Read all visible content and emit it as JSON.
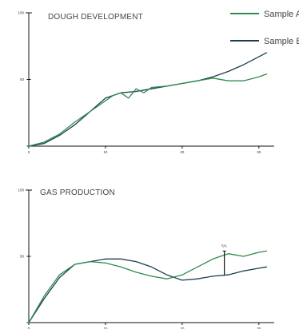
{
  "colors": {
    "sample_a": "#2e8b4e",
    "sample_b": "#1c3f4f",
    "axis": "#111111"
  },
  "legend": [
    {
      "label": "Sample A",
      "color": "#2e8b4e"
    },
    {
      "label": "Sample B",
      "color": "#1c3f4f"
    }
  ],
  "chart_data": [
    {
      "type": "line",
      "title": "DOUGH DEVELOPMENT",
      "xlabel": "",
      "ylabel": "",
      "xlim": [
        0,
        32
      ],
      "ylim": [
        0,
        100
      ],
      "x_ticks": [
        0,
        10,
        20,
        30
      ],
      "y_ticks": [
        0,
        50,
        100
      ],
      "x_tick_labels": [
        "0",
        "10",
        "20",
        "30"
      ],
      "y_tick_labels": [
        "",
        "50",
        "100"
      ],
      "grid": false,
      "legend_position": "top-right",
      "series": [
        {
          "name": "Sample A",
          "x": [
            0,
            2,
            4,
            6,
            8,
            10,
            11,
            12,
            13,
            14,
            15,
            16,
            18,
            20,
            22,
            24,
            26,
            28,
            30,
            31
          ],
          "y": [
            0,
            3,
            9,
            18,
            26,
            34,
            38,
            40,
            36,
            43,
            40,
            44,
            45,
            47,
            49,
            51,
            49,
            49,
            52,
            54
          ]
        },
        {
          "name": "Sample B",
          "x": [
            0,
            2,
            4,
            6,
            8,
            10,
            12,
            14,
            16,
            18,
            20,
            22,
            24,
            26,
            28,
            30,
            31
          ],
          "y": [
            0,
            2,
            8,
            16,
            26,
            36,
            40,
            41,
            43,
            45,
            47,
            49,
            52,
            56,
            61,
            67,
            70
          ]
        }
      ]
    },
    {
      "type": "line",
      "title": "GAS PRODUCTION",
      "xlabel": "",
      "ylabel": "",
      "xlim": [
        0,
        32
      ],
      "ylim": [
        0,
        100
      ],
      "x_ticks": [
        0,
        10,
        20,
        30
      ],
      "y_ticks": [
        0,
        50,
        100
      ],
      "x_tick_labels": [
        "0",
        "10",
        "20",
        "30"
      ],
      "y_tick_labels": [
        "",
        "50",
        "100"
      ],
      "grid": false,
      "annotations": [
        {
          "text": "T/A",
          "x": 25.5,
          "y_from": 36,
          "y_to": 54
        }
      ],
      "series": [
        {
          "name": "Sample A",
          "x": [
            0,
            2,
            4,
            6,
            8,
            10,
            12,
            14,
            16,
            18,
            20,
            22,
            24,
            26,
            28,
            30,
            31
          ],
          "y": [
            0,
            20,
            36,
            44,
            46,
            45,
            42,
            38,
            35,
            33,
            36,
            42,
            48,
            52,
            50,
            53,
            54
          ]
        },
        {
          "name": "Sample B",
          "x": [
            0,
            2,
            4,
            6,
            8,
            10,
            12,
            14,
            16,
            18,
            20,
            22,
            24,
            26,
            28,
            30,
            31
          ],
          "y": [
            0,
            18,
            34,
            44,
            46,
            48,
            48,
            46,
            42,
            36,
            32,
            33,
            35,
            36,
            39,
            41,
            42
          ]
        }
      ]
    }
  ]
}
